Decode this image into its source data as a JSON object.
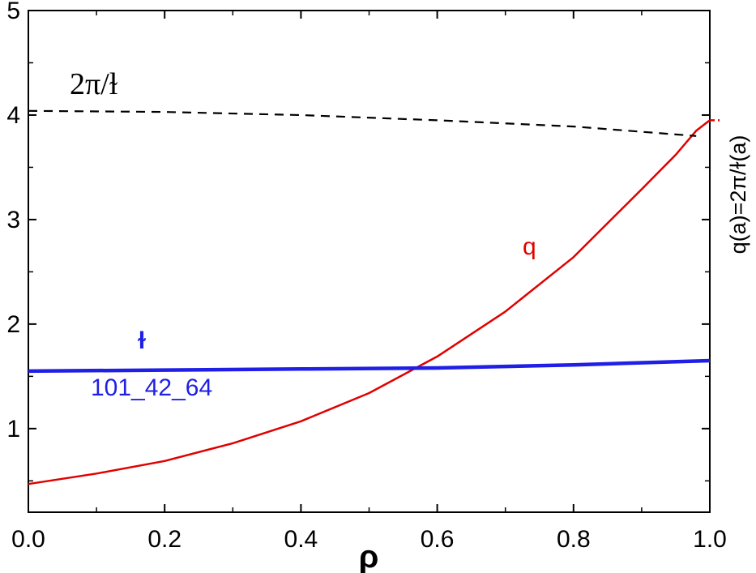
{
  "chart_data": {
    "type": "line",
    "xlabel": "ρ",
    "ylabel": "",
    "xlim": [
      0.0,
      1.0
    ],
    "ylim": [
      0.2,
      5.0
    ],
    "x_ticks": [
      "0.0",
      "0.2",
      "0.4",
      "0.6",
      "0.8",
      "1.0"
    ],
    "y_ticks": [
      "1",
      "2",
      "3",
      "4",
      "5"
    ],
    "series": [
      {
        "name": "q",
        "color": "#e00000",
        "style": "solid",
        "x": [
          0.0,
          0.1,
          0.2,
          0.3,
          0.4,
          0.5,
          0.6,
          0.7,
          0.8,
          0.9,
          0.95,
          0.98,
          1.0
        ],
        "y": [
          0.47,
          0.57,
          0.69,
          0.86,
          1.07,
          1.34,
          1.69,
          2.12,
          2.64,
          3.29,
          3.62,
          3.85,
          3.95
        ]
      },
      {
        "name": "ɫ",
        "color": "#1f1fe6",
        "style": "solid",
        "x": [
          0.0,
          0.2,
          0.4,
          0.6,
          0.8,
          1.0
        ],
        "y": [
          1.55,
          1.56,
          1.57,
          1.58,
          1.61,
          1.65
        ]
      },
      {
        "name": "2π/ɫ",
        "color": "#000000",
        "style": "dashed",
        "x": [
          0.0,
          0.2,
          0.4,
          0.6,
          0.8,
          0.98
        ],
        "y": [
          4.04,
          4.03,
          4.0,
          3.95,
          3.89,
          3.8
        ]
      }
    ],
    "annotations": {
      "twopi_label": "2π/ɫ",
      "q_label": "q",
      "iota_label": "ɫ",
      "shot_label": "101_42_64",
      "side_label": "q(a)=2π/ɫ(a)"
    }
  }
}
